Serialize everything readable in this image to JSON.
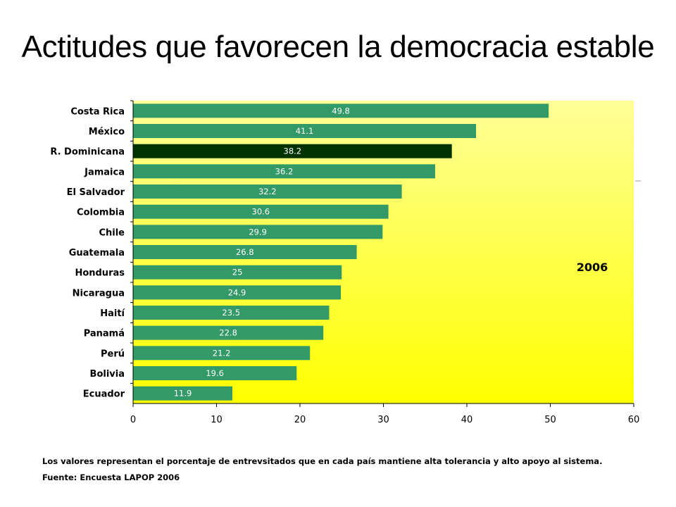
{
  "title": "Actitudes que favorecen la democracia estable",
  "footnote": "Los valores representan el porcentaje de entrevsitados que en cada país mantiene alta tolerancia y alto apoyo al sistema.",
  "source": "Fuente: Encuesta LAPOP 2006",
  "colors": {
    "bar": "#339966",
    "highlight": "#003300",
    "background_top": "#ffff99",
    "background_bottom": "#ffff00"
  },
  "chart_data": {
    "type": "bar",
    "orientation": "horizontal",
    "categories": [
      "Costa Rica",
      "México",
      "R. Dominicana",
      "Jamaica",
      "El Salvador",
      "Colombia",
      "Chile",
      "Guatemala",
      "Honduras",
      "Nicaragua",
      "Haití",
      "Panamá",
      "Perú",
      "Bolivia",
      "Ecuador"
    ],
    "values": [
      49.8,
      41.1,
      38.2,
      36.2,
      32.2,
      30.6,
      29.9,
      26.8,
      25,
      24.9,
      23.5,
      22.8,
      21.2,
      19.6,
      11.9
    ],
    "value_labels": [
      "49.8",
      "41.1",
      "38.2",
      "36.2",
      "32.2",
      "30.6",
      "29.9",
      "26.8",
      "25",
      "24.9",
      "23.5",
      "22.8",
      "21.2",
      "19.6",
      "11.9"
    ],
    "highlight_category": "R. Dominicana",
    "xlim": [
      0,
      60
    ],
    "xticks": [
      "0",
      "10",
      "20",
      "30",
      "40",
      "50",
      "60"
    ],
    "annotation": "2006",
    "grid": false
  }
}
